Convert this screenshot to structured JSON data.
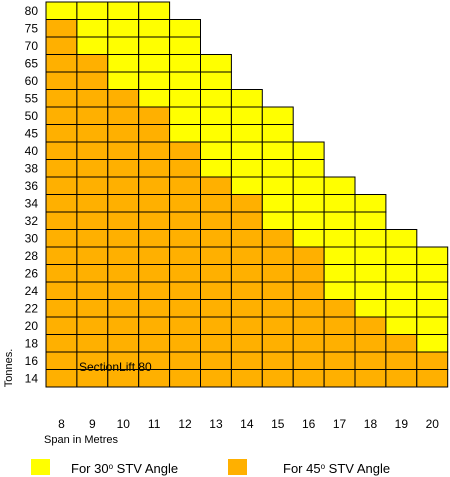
{
  "chart_data": {
    "type": "heatmap",
    "title": "",
    "xlabel": "Span in Metres",
    "ylabel": "Tonnes.",
    "annotation": "SectionLift 80",
    "x_categories": [
      8,
      9,
      10,
      11,
      12,
      13,
      14,
      15,
      16,
      17,
      18,
      19,
      20
    ],
    "y_categories": [
      80,
      75,
      70,
      65,
      60,
      55,
      50,
      45,
      40,
      38,
      36,
      34,
      32,
      30,
      28,
      26,
      24,
      22,
      20,
      18,
      16,
      14
    ],
    "max_tonnes_30deg": [
      80,
      80,
      80,
      80,
      75,
      65,
      55,
      50,
      40,
      36,
      34,
      30,
      28
    ],
    "max_tonnes_45deg": [
      75,
      65,
      55,
      50,
      40,
      36,
      34,
      30,
      28,
      22,
      20,
      18,
      16
    ],
    "colors": {
      "deg30": "#ffff00",
      "deg45": "#ffb000",
      "grid": "#000000"
    },
    "legend": {
      "placement": "bottom",
      "items": [
        {
          "prefix": "For 30",
          "sup": "o",
          "suffix": " STV Angle",
          "color": "#ffff00"
        },
        {
          "prefix": "For 45",
          "sup": "o",
          "suffix": " STV Angle",
          "color": "#ffb000"
        }
      ]
    }
  }
}
